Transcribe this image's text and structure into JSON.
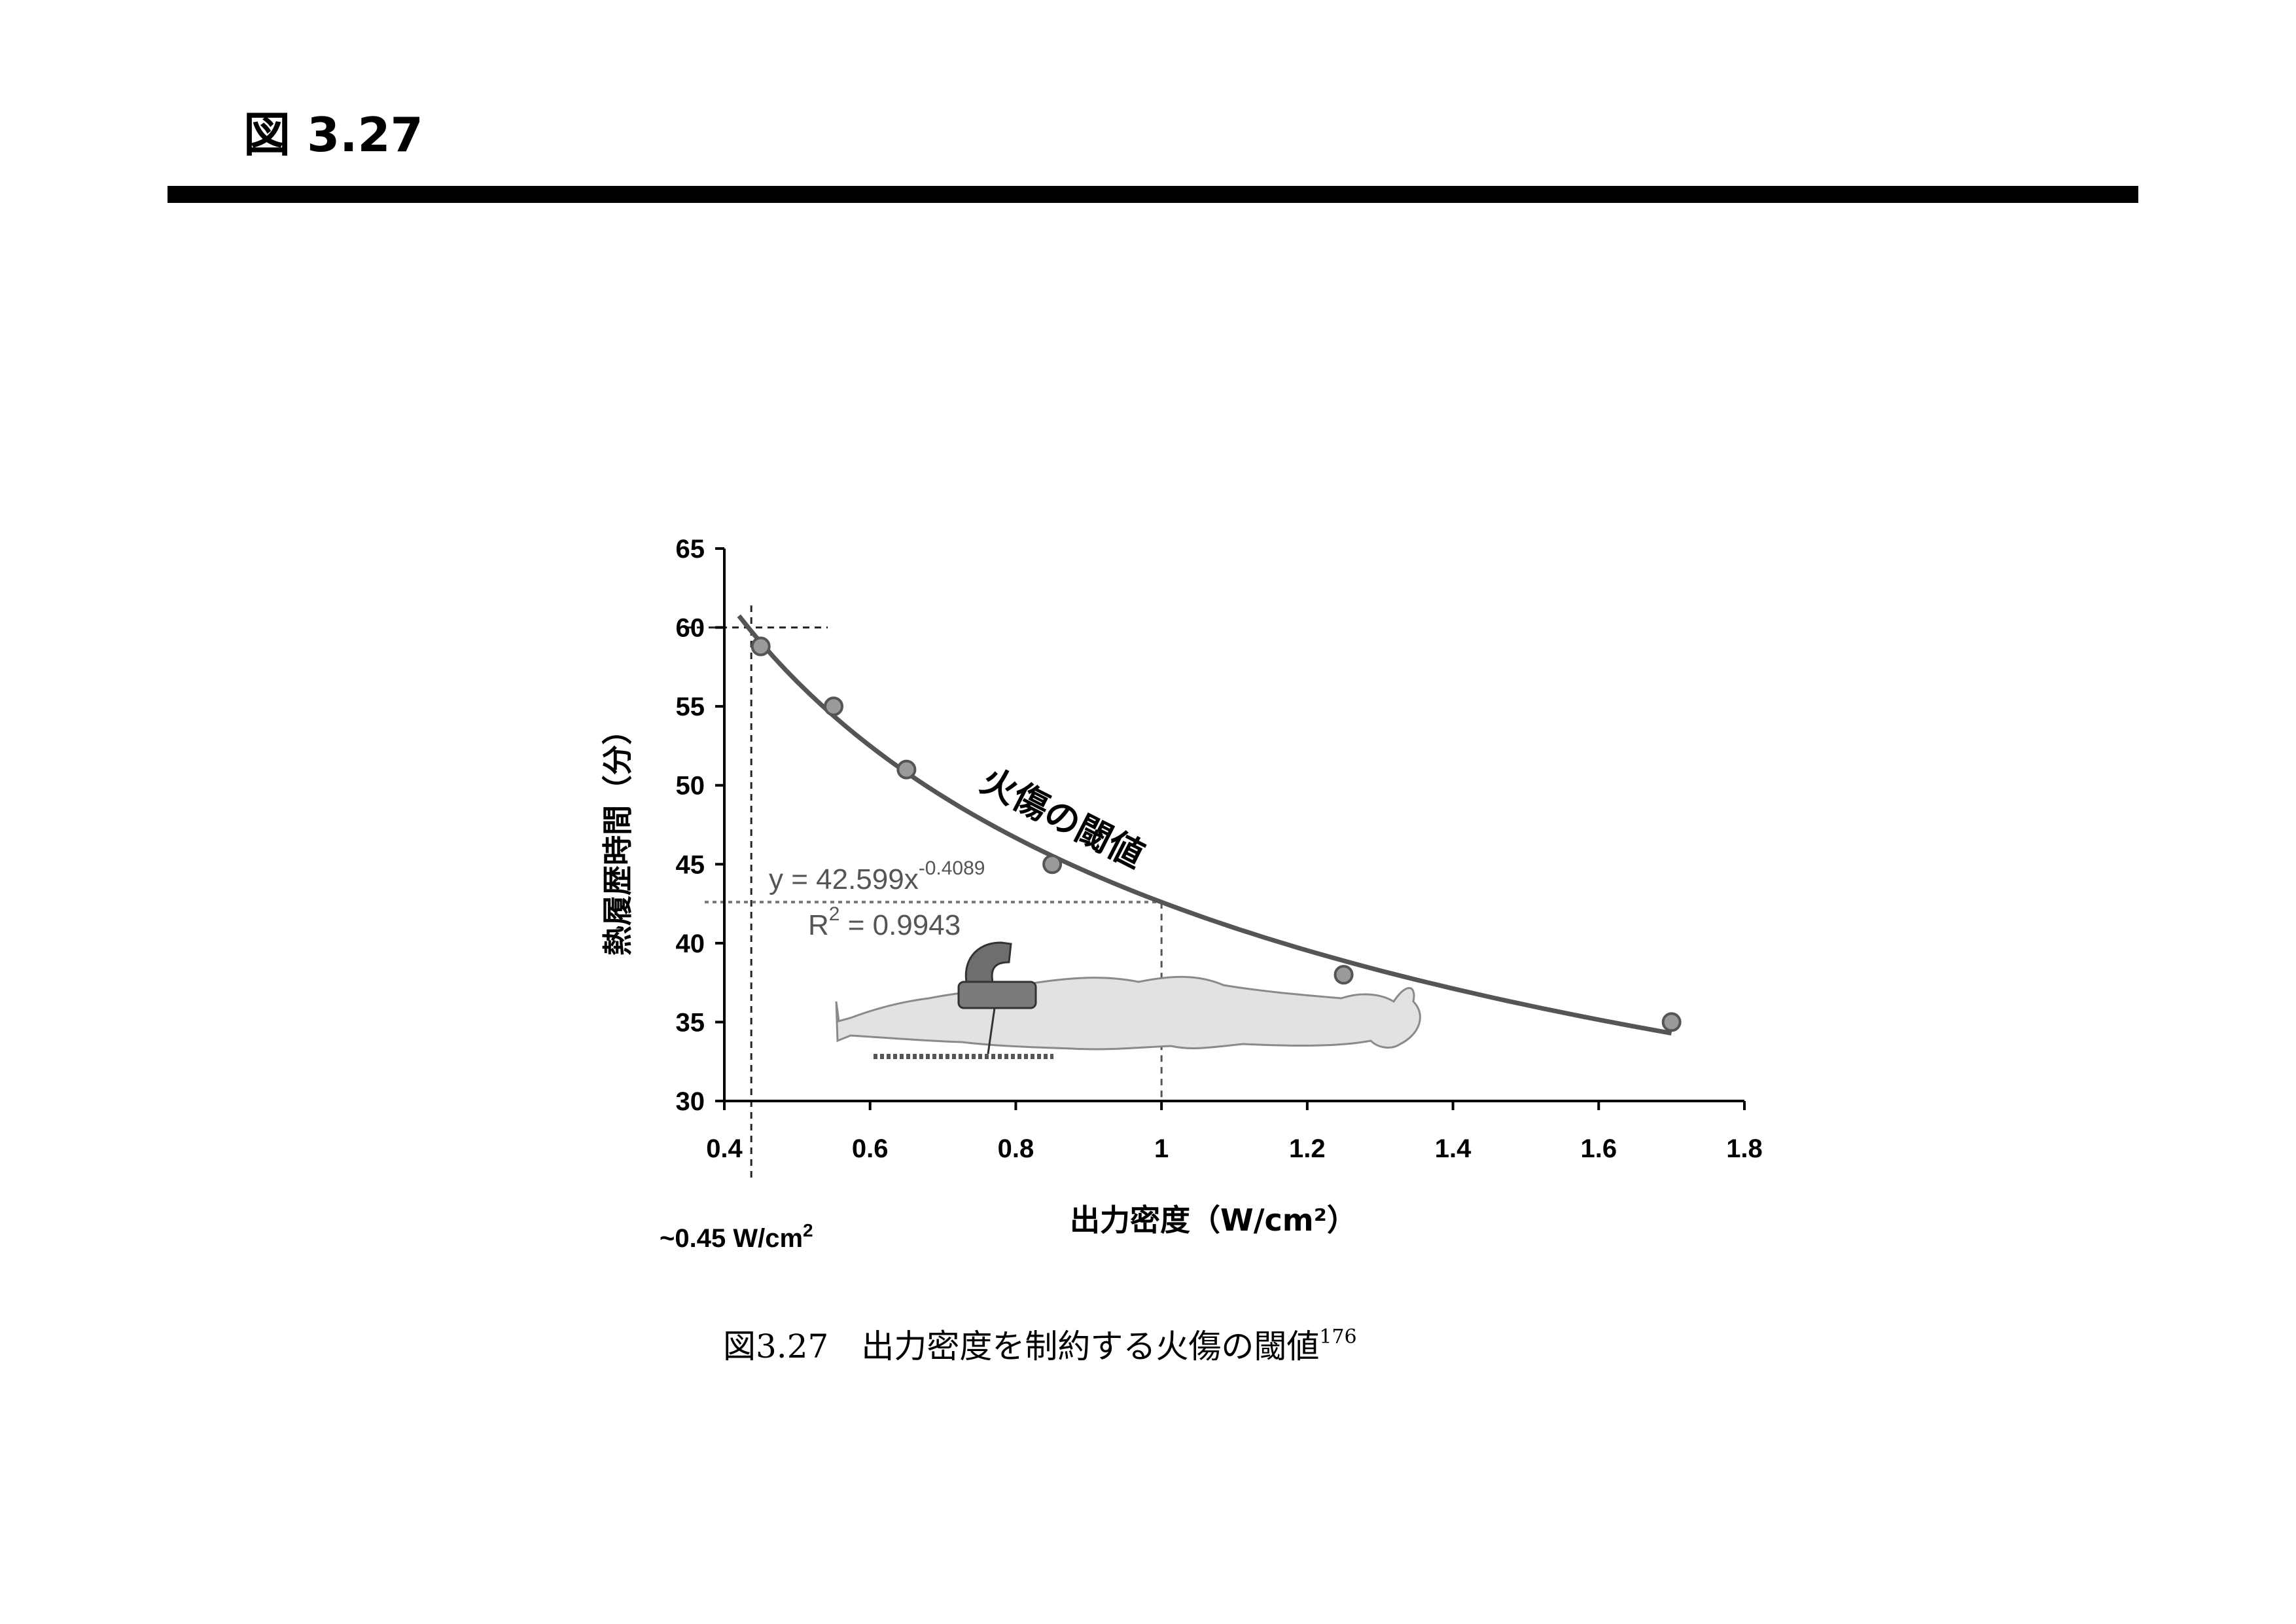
{
  "page": {
    "heading": "図 3.27",
    "caption": "図3.27　出力密度を制約する火傷の閾値",
    "caption_ref": "176"
  },
  "chart_data": {
    "type": "scatter",
    "xlabel": "出力密度（W/cm²）",
    "ylabel": "熱履歴時間（分）",
    "xlim": [
      0.4,
      1.8
    ],
    "ylim": [
      30,
      65
    ],
    "x_ticks": [
      "0.4",
      "0.6",
      "0.8",
      "1",
      "1.2",
      "1.4",
      "1.6",
      "1.8"
    ],
    "y_ticks": [
      "30",
      "35",
      "40",
      "45",
      "50",
      "55",
      "60",
      "65"
    ],
    "grid": false,
    "points": [
      {
        "x": 0.45,
        "y": 58.8
      },
      {
        "x": 0.55,
        "y": 55.0
      },
      {
        "x": 0.65,
        "y": 51.0
      },
      {
        "x": 0.85,
        "y": 45.0
      },
      {
        "x": 1.25,
        "y": 38.0
      },
      {
        "x": 1.7,
        "y": 35.0
      }
    ],
    "trendline": {
      "equation": "y = 42.599x",
      "exponent": "-0.4089",
      "r2_label": "R",
      "r2_value": " = 0.9943",
      "coef": 42.599,
      "power": -0.4089,
      "x_range": [
        0.42,
        1.7
      ]
    },
    "annotations": {
      "curve_label": "火傷の閾値",
      "threshold_x_label": "~0.45 W/cm",
      "reference_lines": [
        {
          "type": "vertical",
          "x": 0.437
        },
        {
          "type": "horizontal",
          "y": 60
        },
        {
          "type": "horizontal",
          "y": 42.6
        },
        {
          "type": "vertical",
          "x": 1.0
        }
      ]
    },
    "colors": {
      "curve": "#555555",
      "marker_fill": "#9a9a9a",
      "marker_edge": "#555555",
      "axis": "#000000",
      "body_fill": "#e2e2e2"
    }
  }
}
